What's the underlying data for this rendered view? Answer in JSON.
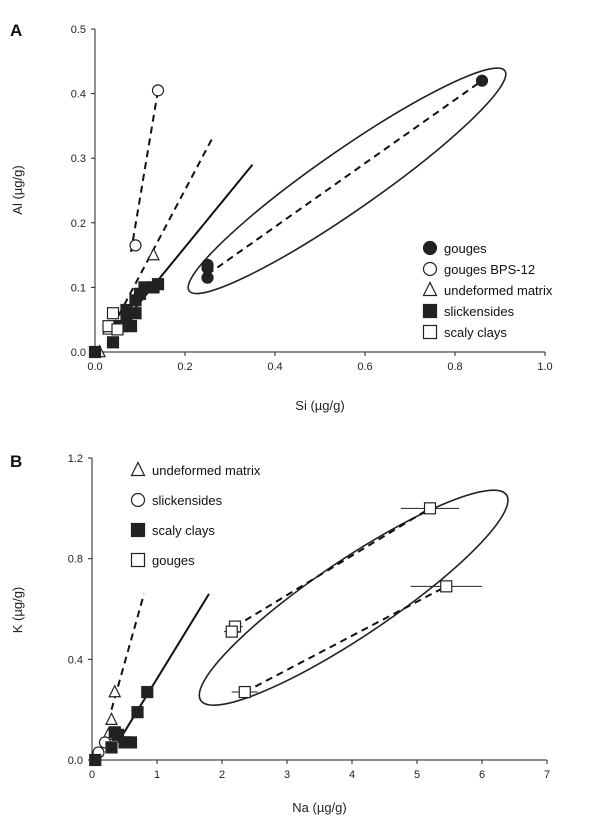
{
  "chart_data": [
    {
      "panel": "A",
      "type": "scatter",
      "xlabel": "Si (µg/g)",
      "ylabel": "Al (µg/g)",
      "xlim": [
        0,
        1.0
      ],
      "ylim": [
        0,
        0.5
      ],
      "xticks": [
        "0.0",
        "0.2",
        "0.4",
        "0.6",
        "0.8",
        "1.0"
      ],
      "yticks": [
        "0.0",
        "0.1",
        "0.2",
        "0.3",
        "0.4",
        "0.5"
      ],
      "legend_position": "bottom-right",
      "series": [
        {
          "name": "gouges",
          "marker": "filled-circle",
          "points": [
            [
              0.86,
              0.42
            ],
            [
              0.25,
              0.135
            ],
            [
              0.25,
              0.13
            ],
            [
              0.25,
              0.115
            ]
          ]
        },
        {
          "name": "gouges BPS-12",
          "marker": "open-circle",
          "points": [
            [
              0.09,
              0.165
            ],
            [
              0.14,
              0.405
            ]
          ]
        },
        {
          "name": "undeformed matrix",
          "marker": "open-triangle",
          "points": [
            [
              0.01,
              0.0
            ],
            [
              0.03,
              0.035
            ],
            [
              0.13,
              0.15
            ]
          ]
        },
        {
          "name": "slickensides",
          "marker": "filled-square",
          "points": [
            [
              0.0,
              0.0
            ],
            [
              0.04,
              0.015
            ],
            [
              0.05,
              0.04
            ],
            [
              0.06,
              0.04
            ],
            [
              0.07,
              0.05
            ],
            [
              0.07,
              0.065
            ],
            [
              0.08,
              0.04
            ],
            [
              0.09,
              0.06
            ],
            [
              0.09,
              0.08
            ],
            [
              0.1,
              0.09
            ],
            [
              0.11,
              0.1
            ],
            [
              0.13,
              0.1
            ],
            [
              0.14,
              0.105
            ]
          ]
        },
        {
          "name": "scaly clays",
          "marker": "open-square",
          "points": [
            [
              0.03,
              0.04
            ],
            [
              0.04,
              0.06
            ],
            [
              0.05,
              0.035
            ]
          ]
        }
      ],
      "lines": [
        {
          "style": "dashed",
          "from": [
            0.08,
            0.155
          ],
          "to": [
            0.14,
            0.405
          ]
        },
        {
          "style": "dashed",
          "from": [
            0.04,
            0.04
          ],
          "to": [
            0.26,
            0.33
          ]
        },
        {
          "style": "solid",
          "from": [
            0.08,
            0.06
          ],
          "to": [
            0.35,
            0.29
          ]
        },
        {
          "style": "dashed",
          "from": [
            0.25,
            0.12
          ],
          "to": [
            0.86,
            0.42
          ]
        }
      ],
      "ellipse": {
        "x": [
          0.22,
          0.9
        ],
        "y": [
          0.1,
          0.43
        ]
      }
    },
    {
      "panel": "B",
      "type": "scatter",
      "xlabel": "Na (µg/g)",
      "ylabel": "K (µg/g)",
      "xlim": [
        0,
        7
      ],
      "ylim": [
        0,
        1.2
      ],
      "xticks": [
        "0",
        "1",
        "2",
        "3",
        "4",
        "5",
        "6",
        "7"
      ],
      "yticks": [
        "0.0",
        "0.4",
        "0.8",
        "1.2"
      ],
      "legend_position": "top-left",
      "series": [
        {
          "name": "undeformed matrix",
          "marker": "open-triangle",
          "points": [
            [
              0.35,
              0.27
            ],
            [
              0.3,
              0.16
            ],
            [
              0.25,
              0.1
            ]
          ]
        },
        {
          "name": "slickensides",
          "marker": "open-circle",
          "points": [
            [
              0.1,
              0.03
            ],
            [
              0.2,
              0.07
            ]
          ]
        },
        {
          "name": "scaly clays",
          "marker": "filled-square",
          "points": [
            [
              0.05,
              0.0
            ],
            [
              0.3,
              0.05
            ],
            [
              0.4,
              0.1
            ],
            [
              0.5,
              0.07
            ],
            [
              0.6,
              0.07
            ],
            [
              0.7,
              0.19
            ],
            [
              0.85,
              0.27
            ],
            [
              0.35,
              0.11
            ]
          ]
        },
        {
          "name": "gouges",
          "marker": "open-square",
          "points": [
            [
              5.2,
              1.0
            ],
            [
              5.45,
              0.69
            ],
            [
              2.2,
              0.53
            ],
            [
              2.15,
              0.51
            ],
            [
              2.35,
              0.27
            ]
          ],
          "x_error": [
            0.45,
            0.55,
            0.12,
            0.12,
            0.2
          ]
        }
      ],
      "lines": [
        {
          "style": "dashed",
          "from": [
            0.3,
            0.2
          ],
          "to": [
            0.8,
            0.66
          ]
        },
        {
          "style": "solid",
          "from": [
            0.4,
            0.07
          ],
          "to": [
            1.8,
            0.66
          ]
        },
        {
          "style": "dashed",
          "from": [
            2.2,
            0.53
          ],
          "to": [
            5.2,
            1.0
          ]
        },
        {
          "style": "dashed",
          "from": [
            2.35,
            0.27
          ],
          "to": [
            5.45,
            0.69
          ]
        }
      ],
      "ellipse": {
        "x": [
          1.75,
          6.3
        ],
        "y": [
          0.25,
          1.04
        ]
      }
    }
  ]
}
